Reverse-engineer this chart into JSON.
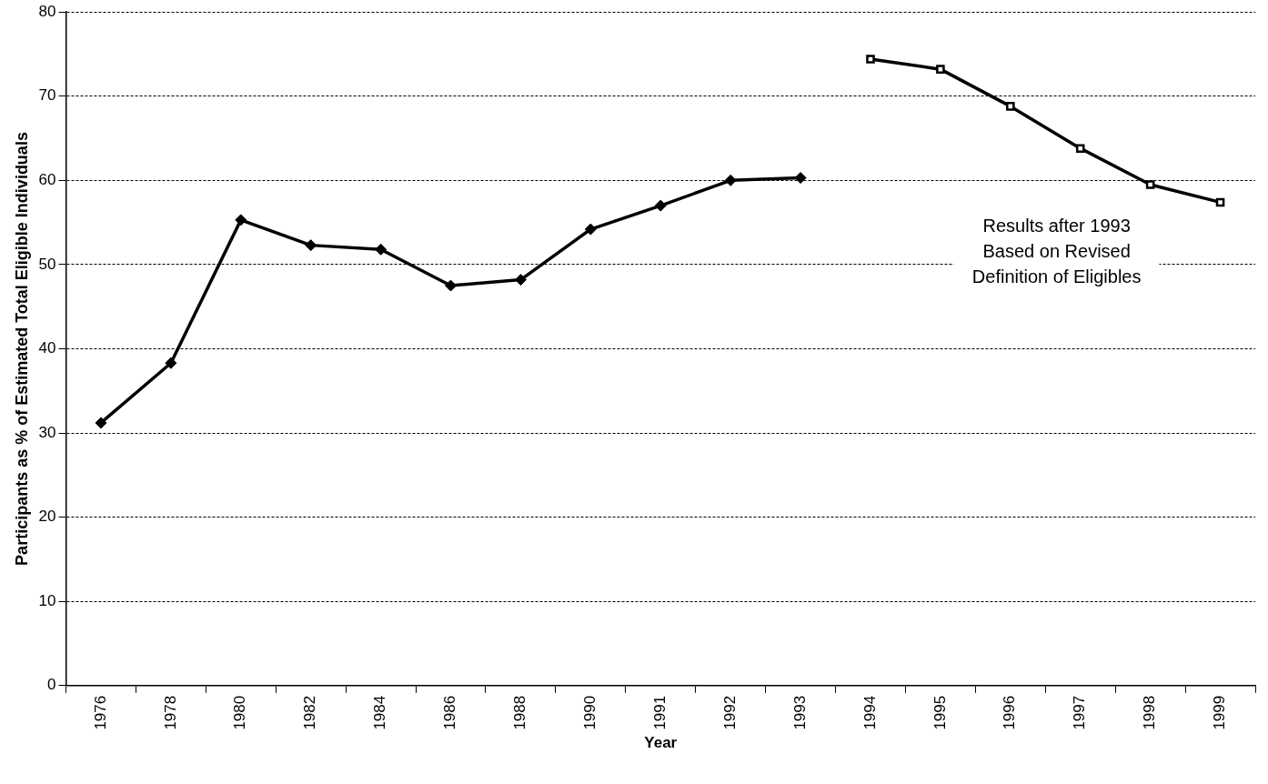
{
  "chart_data": {
    "type": "line",
    "xlabel": "Year",
    "ylabel": "Participants as % of Estimated Total Eligible Individuals",
    "categories": [
      "1976",
      "1978",
      "1980",
      "1982",
      "1984",
      "1986",
      "1988",
      "1990",
      "1991",
      "1992",
      "1993",
      "1994",
      "1995",
      "1996",
      "1997",
      "1998",
      "1999"
    ],
    "series": [
      {
        "color": "#000000",
        "marker": "diamond",
        "values": [
          31.2,
          38.3,
          55.3,
          52.3,
          51.8,
          47.5,
          48.2,
          54.2,
          57.0,
          60.0,
          60.3,
          null,
          null,
          null,
          null,
          null,
          null
        ]
      },
      {
        "color": "#000000",
        "marker": "square",
        "values": [
          null,
          null,
          null,
          null,
          null,
          null,
          null,
          null,
          null,
          null,
          null,
          74.4,
          73.2,
          68.8,
          63.8,
          59.5,
          57.4
        ]
      }
    ],
    "ylim": [
      0,
      80
    ],
    "yticks": [
      0,
      10,
      20,
      30,
      40,
      50,
      60,
      70,
      80
    ],
    "grid": "y",
    "legend": false,
    "line_style": "solid",
    "annotations": [
      "Results after 1993\nBased on Revised\nDefinition of Eligibles"
    ]
  }
}
